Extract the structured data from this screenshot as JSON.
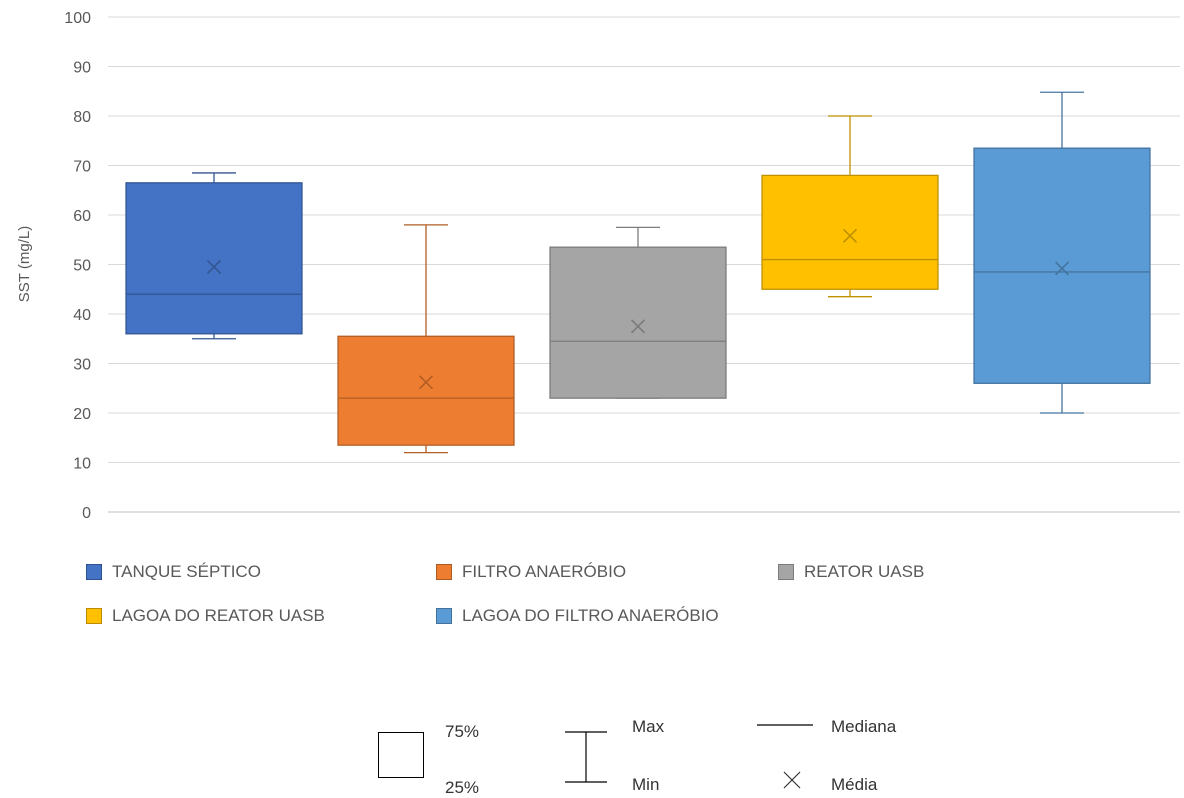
{
  "chart_data": {
    "type": "boxplot",
    "ylabel": "SST (mg/L)",
    "ylim": [
      0,
      100
    ],
    "yticks": [
      0,
      10,
      20,
      30,
      40,
      50,
      60,
      70,
      80,
      90,
      100
    ],
    "grid": true,
    "legend_position": "bottom",
    "series": [
      {
        "name": "TANQUE SÉPTICO",
        "color": "#4472C4",
        "min": 35,
        "q1": 36,
        "median": 44,
        "q3": 66.5,
        "max": 68.5,
        "mean": 49.5
      },
      {
        "name": "FILTRO ANAERÓBIO",
        "color": "#ED7D31",
        "min": 12,
        "q1": 13.5,
        "median": 23,
        "q3": 35.5,
        "max": 58,
        "mean": 26.2
      },
      {
        "name": "REATOR UASB",
        "color": "#A5A5A5",
        "min": 23,
        "q1": 23,
        "median": 34.5,
        "q3": 53.5,
        "max": 57.5,
        "mean": 37.5
      },
      {
        "name": "LAGOA DO REATOR UASB",
        "color": "#FFC000",
        "min": 43.5,
        "q1": 45,
        "median": 51,
        "q3": 68,
        "max": 80,
        "mean": 55.8
      },
      {
        "name": "LAGOA DO FILTRO ANAERÓBIO",
        "color": "#5B9BD5",
        "min": 20,
        "q1": 26,
        "median": 48.5,
        "q3": 73.5,
        "max": 84.8,
        "mean": 49.2
      }
    ]
  },
  "key": {
    "q3_label": "75%",
    "q1_label": "25%",
    "max_label": "Max",
    "min_label": "Min",
    "median_label": "Mediana",
    "mean_label": "Média"
  }
}
